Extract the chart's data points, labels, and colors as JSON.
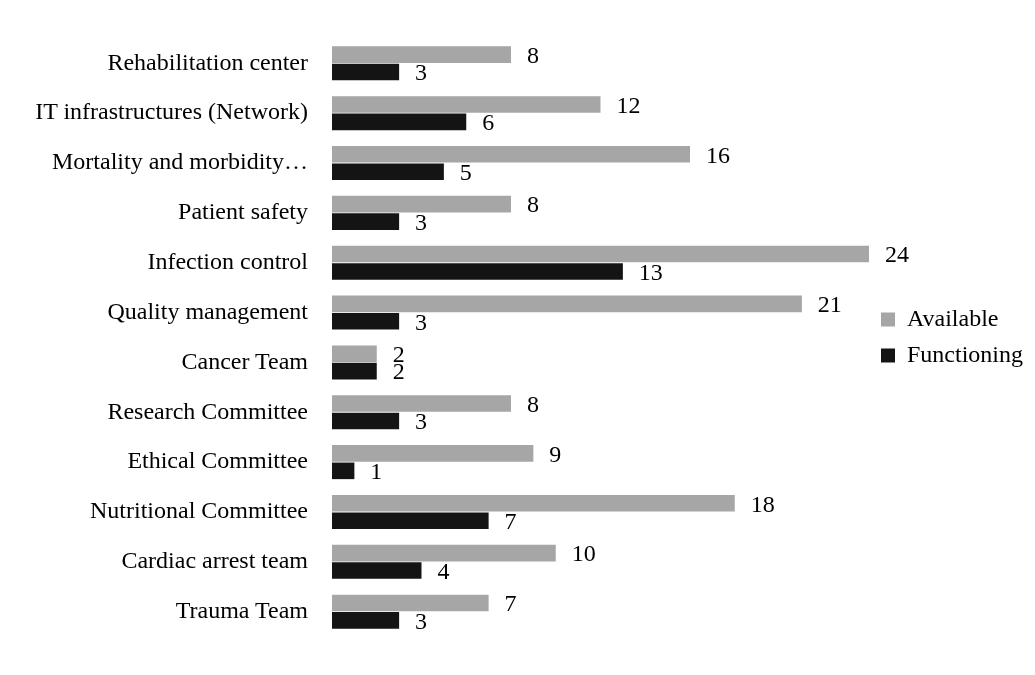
{
  "chart_data": {
    "type": "bar",
    "orientation": "horizontal",
    "categories": [
      "Rehabilitation center",
      "IT infrastructures (Network)",
      "Mortality and morbidity…",
      "Patient safety",
      "Infection control",
      "Quality management",
      "Cancer Team",
      "Research Committee",
      "Ethical Committee",
      "Nutritional Committee",
      "Cardiac arrest team",
      "Trauma Team"
    ],
    "series": [
      {
        "name": "Available",
        "color": "#a6a6a6",
        "values": [
          8,
          12,
          16,
          8,
          24,
          21,
          2,
          8,
          9,
          18,
          10,
          7
        ]
      },
      {
        "name": "Functioning",
        "color": "#141414",
        "values": [
          3,
          6,
          5,
          3,
          13,
          3,
          2,
          3,
          1,
          7,
          4,
          3
        ]
      }
    ],
    "data_labels": true,
    "legend": "right",
    "tick_labels": "y"
  }
}
